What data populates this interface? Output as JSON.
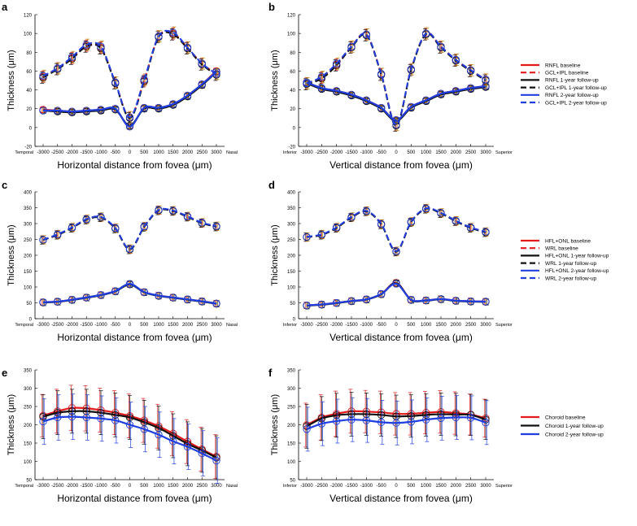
{
  "colors": {
    "baseline": "#e31a1c",
    "y1": "#111111",
    "y2": "#1f3fe0",
    "err_base": "#e31a1c",
    "err_y1": "#111111",
    "err_y2": "#1f3fe0",
    "err_gold": "#b8860b"
  },
  "chart_data": [
    {
      "panel": "a",
      "type": "line",
      "ylabel": "Thickness (μm)",
      "xlabel": "Horizontal distance from fovea (μm)",
      "ylim": [
        -20,
        120
      ],
      "yticks": [
        -20,
        0,
        20,
        40,
        60,
        80,
        100,
        120
      ],
      "x": [
        -3000,
        -2500,
        -2000,
        -1500,
        -1000,
        -500,
        0,
        500,
        1000,
        1500,
        2000,
        2500,
        3000
      ],
      "xtick_labels": [
        "-3000",
        "-2500",
        "-2000",
        "-1500",
        "-1000",
        "-500",
        "0",
        "500",
        "1000",
        "1500",
        "2000",
        "2500",
        "3000"
      ],
      "left_end_label": "Temporal",
      "right_end_label": "Nasal",
      "grid": false,
      "series": [
        {
          "name": "RNFL baseline",
          "group": "lower",
          "style": "solid",
          "color_key": "baseline",
          "values": [
            19,
            18,
            17,
            18,
            19,
            20,
            1,
            21,
            21,
            25,
            34,
            46,
            60
          ]
        },
        {
          "name": "GCL+IPL baseline",
          "group": "upper",
          "style": "dashed",
          "color_key": "baseline",
          "values": [
            54,
            63,
            74,
            87,
            85,
            48,
            11,
            50,
            97,
            100,
            85,
            68,
            57
          ]
        },
        {
          "name": "RNFL 1-year follow-up",
          "group": "lower",
          "style": "solid",
          "color_key": "y1",
          "values": [
            18,
            17,
            16,
            17,
            18,
            19,
            2,
            20,
            20,
            24,
            33,
            45,
            59
          ]
        },
        {
          "name": "GCL+IPL 1-year follow-up",
          "group": "upper",
          "style": "dashed",
          "color_key": "y1",
          "values": [
            53,
            62,
            73,
            86,
            84,
            47,
            10,
            49,
            96,
            99,
            84,
            67,
            56
          ]
        },
        {
          "name": "RNFL 2-year follow-up",
          "group": "lower",
          "style": "solid",
          "color_key": "y2",
          "values": [
            18,
            18,
            17,
            18,
            19,
            20,
            1,
            21,
            21,
            25,
            34,
            46,
            59
          ]
        },
        {
          "name": "GCL+IPL 2-year follow-up",
          "group": "upper",
          "style": "dashed",
          "color_key": "y2",
          "values": [
            55,
            63,
            75,
            88,
            86,
            48,
            11,
            51,
            97,
            101,
            85,
            68,
            57
          ]
        }
      ],
      "legend": [
        "RNFL baseline",
        "GCL+IPL baseline",
        "RNFL 1-year follow-up",
        "GCL+IPL 1-year follow-up",
        "RNFL 2-year follow-up",
        "GCL+IPL 2-year follow-up"
      ]
    },
    {
      "panel": "b",
      "type": "line",
      "ylabel": "Thickness (μm)",
      "xlabel": "Vertical distance from fovea (μm)",
      "ylim": [
        -20,
        120
      ],
      "yticks": [
        -20,
        0,
        20,
        40,
        60,
        80,
        100,
        120
      ],
      "x": [
        -3000,
        -2500,
        -2000,
        -1500,
        -1000,
        -500,
        0,
        500,
        1000,
        1500,
        2000,
        2500,
        3000
      ],
      "xtick_labels": [
        "-3000",
        "-2500",
        "-2000",
        "-1500",
        "-1000",
        "-500",
        "0",
        "500",
        "1000",
        "1500",
        "2000",
        "2500",
        "3000"
      ],
      "left_end_label": "Inferior",
      "right_end_label": "Superior",
      "grid": false,
      "series": [
        {
          "name": "RNFL baseline",
          "group": "lower",
          "style": "solid",
          "color_key": "baseline",
          "values": [
            48,
            42,
            39,
            35,
            29,
            21,
            8,
            22,
            29,
            36,
            39,
            42,
            44
          ]
        },
        {
          "name": "GCL+IPL baseline",
          "group": "upper",
          "style": "dashed",
          "color_key": "baseline",
          "values": [
            47,
            53,
            67,
            86,
            99,
            57,
            3,
            62,
            100,
            86,
            72,
            61,
            51
          ]
        },
        {
          "name": "RNFL 1-year follow-up",
          "group": "lower",
          "style": "solid",
          "color_key": "y1",
          "values": [
            47,
            41,
            38,
            34,
            28,
            20,
            7,
            21,
            28,
            35,
            38,
            41,
            43
          ]
        },
        {
          "name": "GCL+IPL 1-year follow-up",
          "group": "upper",
          "style": "dashed",
          "color_key": "y1",
          "values": [
            46,
            52,
            66,
            85,
            98,
            56,
            2,
            61,
            99,
            85,
            71,
            60,
            50
          ]
        },
        {
          "name": "RNFL 2-year follow-up",
          "group": "lower",
          "style": "solid",
          "color_key": "y2",
          "values": [
            48,
            42,
            39,
            35,
            29,
            21,
            8,
            22,
            29,
            36,
            39,
            42,
            44
          ]
        },
        {
          "name": "GCL+IPL 2-year follow-up",
          "group": "upper",
          "style": "dashed",
          "color_key": "y2",
          "values": [
            47,
            54,
            68,
            86,
            99,
            57,
            3,
            62,
            100,
            86,
            72,
            61,
            51
          ]
        }
      ],
      "legend": [
        "RNFL baseline",
        "GCL+IPL baseline",
        "RNFL 1-year follow-up",
        "GCL+IPL 1-year follow-up",
        "RNFL 2-year follow-up",
        "GCL+IPL 2-year follow-up"
      ]
    },
    {
      "panel": "c",
      "type": "line",
      "ylabel": "Thickness (μm)",
      "xlabel": "Horizontal distance from fovea (μm)",
      "ylim": [
        0,
        400
      ],
      "yticks": [
        0,
        50,
        100,
        150,
        200,
        250,
        300,
        350,
        400
      ],
      "x": [
        -3000,
        -2500,
        -2000,
        -1500,
        -1000,
        -500,
        0,
        500,
        1000,
        1500,
        2000,
        2500,
        3000
      ],
      "xtick_labels": [
        "-3000",
        "-2500",
        "-2000",
        "-1500",
        "-1000",
        "-500",
        "0",
        "500",
        "1000",
        "1500",
        "2000",
        "2500",
        "3000"
      ],
      "left_end_label": "Temporal",
      "right_end_label": "Nasal",
      "grid": false,
      "series": [
        {
          "name": "HFL+ONL baseline",
          "group": "lower",
          "style": "solid",
          "color_key": "baseline",
          "values": [
            52,
            54,
            60,
            67,
            75,
            87,
            109,
            84,
            73,
            67,
            61,
            55,
            48
          ]
        },
        {
          "name": "WRL baseline",
          "group": "upper",
          "style": "dashed",
          "color_key": "baseline",
          "values": [
            249,
            265,
            287,
            313,
            320,
            285,
            219,
            290,
            342,
            340,
            322,
            302,
            291
          ]
        },
        {
          "name": "HFL+ONL 1-year follow-up",
          "group": "lower",
          "style": "solid",
          "color_key": "y1",
          "values": [
            51,
            53,
            59,
            66,
            74,
            86,
            108,
            83,
            72,
            66,
            60,
            54,
            47
          ]
        },
        {
          "name": "WRL 1-year follow-up",
          "group": "upper",
          "style": "dashed",
          "color_key": "y1",
          "values": [
            248,
            264,
            286,
            312,
            319,
            284,
            218,
            289,
            341,
            339,
            321,
            301,
            290
          ]
        },
        {
          "name": "HFL+ONL 2-year follow-up",
          "group": "lower",
          "style": "solid",
          "color_key": "y2",
          "values": [
            52,
            54,
            60,
            67,
            75,
            87,
            110,
            84,
            73,
            67,
            61,
            55,
            48
          ]
        },
        {
          "name": "WRL 2-year follow-up",
          "group": "upper",
          "style": "dashed",
          "color_key": "y2",
          "values": [
            249,
            266,
            288,
            314,
            321,
            286,
            220,
            291,
            343,
            341,
            323,
            303,
            292
          ]
        }
      ],
      "legend": [
        "HFL+ONL baseline",
        "WRL baseline",
        "HFL+ONL 1-year follow-up",
        "WRL 1-year follow-up",
        "HFL+ONL 2-year follow-up",
        "WRL 2-year follow-up"
      ]
    },
    {
      "panel": "d",
      "type": "line",
      "ylabel": "Thickness (μm)",
      "xlabel": "Vertical distance from fovea (μm)",
      "ylim": [
        0,
        400
      ],
      "yticks": [
        0,
        50,
        100,
        150,
        200,
        250,
        300,
        350,
        400
      ],
      "x": [
        -3000,
        -2500,
        -2000,
        -1500,
        -1000,
        -500,
        0,
        500,
        1000,
        1500,
        2000,
        2500,
        3000
      ],
      "xtick_labels": [
        "-3000",
        "-2500",
        "-2000",
        "-1500",
        "-1000",
        "-500",
        "0",
        "500",
        "1000",
        "1500",
        "2000",
        "2500",
        "3000"
      ],
      "left_end_label": "Inferior",
      "right_end_label": "Superior",
      "grid": false,
      "series": [
        {
          "name": "HFL+ONL baseline",
          "group": "lower",
          "style": "solid",
          "color_key": "baseline",
          "values": [
            42,
            45,
            50,
            56,
            61,
            78,
            113,
            60,
            58,
            62,
            57,
            55,
            54
          ]
        },
        {
          "name": "WRL baseline",
          "group": "upper",
          "style": "dashed",
          "color_key": "baseline",
          "values": [
            258,
            265,
            287,
            320,
            339,
            298,
            212,
            305,
            347,
            333,
            308,
            287,
            273
          ]
        },
        {
          "name": "HFL+ONL 1-year follow-up",
          "group": "lower",
          "style": "solid",
          "color_key": "y1",
          "values": [
            41,
            44,
            49,
            55,
            60,
            77,
            112,
            59,
            57,
            61,
            56,
            54,
            53
          ]
        },
        {
          "name": "WRL 1-year follow-up",
          "group": "upper",
          "style": "dashed",
          "color_key": "y1",
          "values": [
            257,
            264,
            286,
            319,
            338,
            297,
            211,
            304,
            346,
            332,
            307,
            286,
            272
          ]
        },
        {
          "name": "HFL+ONL 2-year follow-up",
          "group": "lower",
          "style": "solid",
          "color_key": "y2",
          "values": [
            42,
            45,
            50,
            56,
            61,
            78,
            110,
            60,
            58,
            62,
            57,
            55,
            54
          ]
        },
        {
          "name": "WRL 2-year follow-up",
          "group": "upper",
          "style": "dashed",
          "color_key": "y2",
          "values": [
            258,
            266,
            288,
            321,
            340,
            299,
            213,
            306,
            348,
            334,
            309,
            288,
            274
          ]
        }
      ],
      "legend": [
        "HFL+ONL baseline",
        "WRL baseline",
        "HFL+ONL 1-year follow-up",
        "WRL 1-year follow-up",
        "HFL+ONL 2-year follow-up",
        "WRL 2-year follow-up"
      ]
    },
    {
      "panel": "e",
      "type": "line",
      "ylabel": "Thickness (μm)",
      "xlabel": "Horizontal distance from fovea (μm)",
      "ylim": [
        50,
        350
      ],
      "yticks": [
        50,
        100,
        150,
        200,
        250,
        300,
        350
      ],
      "x": [
        -3000,
        -2500,
        -2000,
        -1500,
        -1000,
        -500,
        0,
        500,
        1000,
        1500,
        2000,
        2500,
        3000
      ],
      "xtick_labels": [
        "-3000",
        "-2500",
        "-2000",
        "-1500",
        "-1000",
        "-500",
        "0",
        "500",
        "1000",
        "1500",
        "2000",
        "2500",
        "3000"
      ],
      "left_end_label": "Temporal",
      "right_end_label": "Nasal",
      "grid": false,
      "series": [
        {
          "name": "Choroid baseline",
          "style": "solid",
          "color_key": "baseline",
          "values": [
            225,
            237,
            246,
            245,
            240,
            233,
            224,
            212,
            196,
            176,
            154,
            133,
            113
          ],
          "err": [
            58,
            60,
            62,
            62,
            60,
            60,
            60,
            60,
            60,
            60,
            60,
            60,
            60
          ]
        },
        {
          "name": "Choroid 1-year follow-up",
          "style": "solid",
          "color_key": "y1",
          "values": [
            222,
            233,
            237,
            237,
            233,
            227,
            220,
            207,
            191,
            170,
            148,
            130,
            110
          ],
          "err": [
            60,
            60,
            60,
            60,
            60,
            60,
            60,
            60,
            60,
            60,
            60,
            60,
            60
          ]
        },
        {
          "name": "Choroid 2-year follow-up",
          "style": "solid",
          "color_key": "y2",
          "values": [
            209,
            220,
            222,
            220,
            217,
            212,
            200,
            188,
            173,
            155,
            140,
            122,
            102
          ],
          "err": [
            62,
            62,
            62,
            62,
            62,
            62,
            62,
            62,
            62,
            62,
            62,
            62,
            62
          ]
        }
      ],
      "legend": [
        "Choroid baseline",
        "Choroid 1-year follow-up",
        "Choroid 2-year follow-up"
      ]
    },
    {
      "panel": "f",
      "type": "line",
      "ylabel": "Thickness (μm)",
      "xlabel": "Vertical distance from fovea (μm)",
      "ylim": [
        50,
        350
      ],
      "yticks": [
        50,
        100,
        150,
        200,
        250,
        300,
        350
      ],
      "x": [
        -3000,
        -2500,
        -2000,
        -1500,
        -1000,
        -500,
        0,
        500,
        1000,
        1500,
        2000,
        2500,
        3000
      ],
      "xtick_labels": [
        "-3000",
        "-2500",
        "-2000",
        "-1500",
        "-1000",
        "-500",
        "0",
        "500",
        "1000",
        "1500",
        "2000",
        "2500",
        "3000"
      ],
      "left_end_label": "Inferior",
      "right_end_label": "Superior",
      "grid": false,
      "series": [
        {
          "name": "Choroid baseline",
          "style": "solid",
          "color_key": "baseline",
          "values": [
            199,
            220,
            230,
            237,
            236,
            234,
            230,
            230,
            233,
            235,
            232,
            228,
            218
          ],
          "err": [
            60,
            62,
            62,
            60,
            58,
            58,
            58,
            58,
            58,
            58,
            58,
            56,
            52
          ]
        },
        {
          "name": "Choroid 1-year follow-up",
          "style": "solid",
          "color_key": "y1",
          "values": [
            196,
            217,
            226,
            229,
            229,
            227,
            223,
            224,
            227,
            229,
            228,
            227,
            214
          ],
          "err": [
            60,
            60,
            60,
            60,
            58,
            58,
            58,
            58,
            58,
            58,
            58,
            56,
            54
          ]
        },
        {
          "name": "Choroid 2-year follow-up",
          "style": "solid",
          "color_key": "y2",
          "values": [
            188,
            203,
            210,
            214,
            212,
            207,
            205,
            208,
            214,
            218,
            220,
            219,
            206
          ],
          "err": [
            60,
            60,
            60,
            60,
            60,
            60,
            60,
            60,
            60,
            60,
            60,
            60,
            60
          ]
        }
      ],
      "legend": [
        "Choroid baseline",
        "Choroid 1-year follow-up",
        "Choroid 2-year follow-up"
      ]
    }
  ]
}
